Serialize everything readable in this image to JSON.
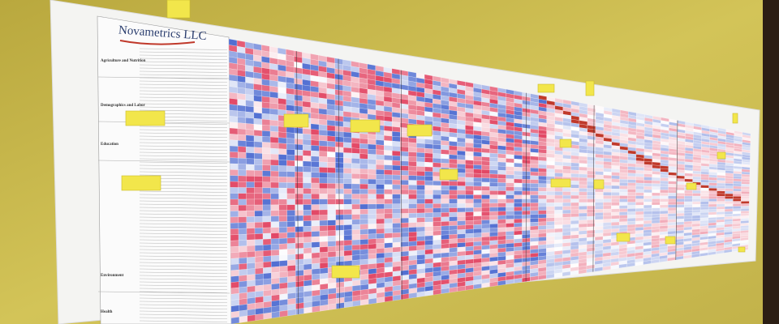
{
  "poster": {
    "logo": "Novametrics LLC",
    "groups": [
      "Agriculture and Nutrition",
      "Demographics and Labor",
      "Education",
      "Environment",
      "Health"
    ]
  }
}
